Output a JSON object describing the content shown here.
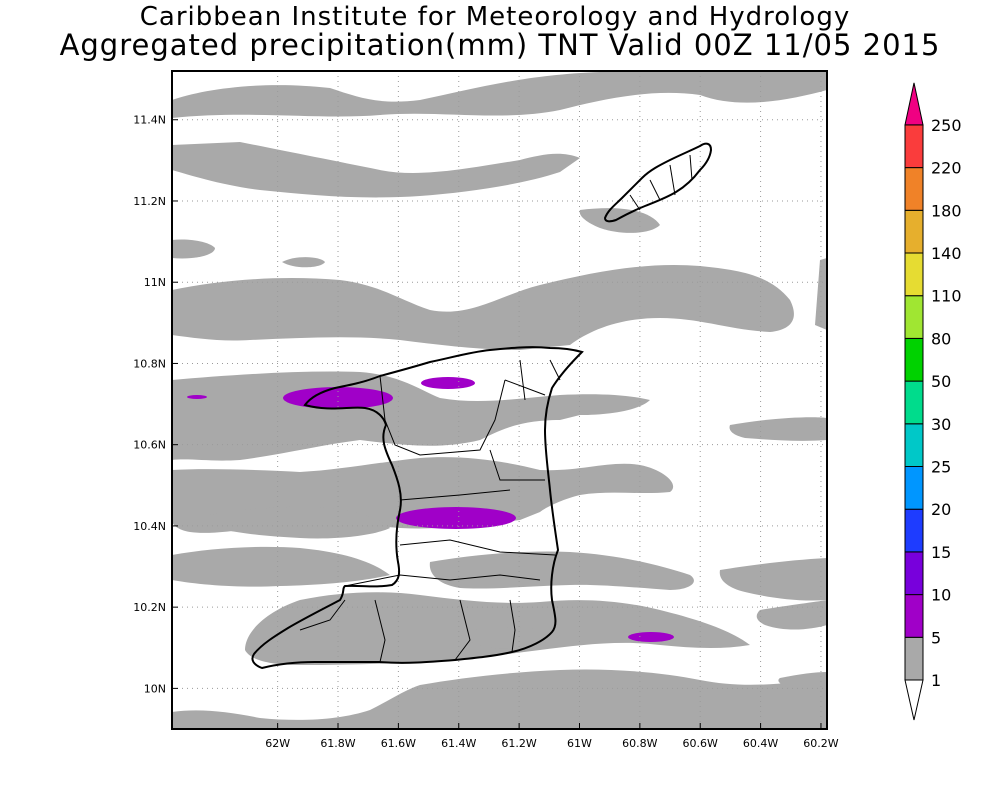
{
  "title": {
    "line1": "Caribbean Institute for Meteorology and Hydrology",
    "line2": "Aggregated precipitation(mm) TNT Valid 00Z 11/05 2015"
  },
  "map": {
    "lon_range": [
      -62.35,
      -60.18
    ],
    "lat_range": [
      9.9,
      11.52
    ],
    "lon_ticks": [
      {
        "value": -62.0,
        "label": "62W"
      },
      {
        "value": -61.8,
        "label": "61.8W"
      },
      {
        "value": -61.6,
        "label": "61.6W"
      },
      {
        "value": -61.4,
        "label": "61.4W"
      },
      {
        "value": -61.2,
        "label": "61.2W"
      },
      {
        "value": -61.0,
        "label": "61W"
      },
      {
        "value": -60.8,
        "label": "60.8W"
      },
      {
        "value": -60.6,
        "label": "60.6W"
      },
      {
        "value": -60.4,
        "label": "60.4W"
      },
      {
        "value": -60.2,
        "label": "60.2W"
      }
    ],
    "lat_ticks": [
      {
        "value": 10.0,
        "label": "10N"
      },
      {
        "value": 10.2,
        "label": "10.2N"
      },
      {
        "value": 10.4,
        "label": "10.4N"
      },
      {
        "value": 10.6,
        "label": "10.6N"
      },
      {
        "value": 10.8,
        "label": "10.8N"
      },
      {
        "value": 11.0,
        "label": "11N"
      },
      {
        "value": 11.2,
        "label": "11.2N"
      },
      {
        "value": 11.4,
        "label": "11.4N"
      }
    ],
    "grid": true
  },
  "colorbar": {
    "levels": [
      {
        "label": "1",
        "color": "#ffffff"
      },
      {
        "label": "5",
        "color": "#a9a9a9"
      },
      {
        "label": "10",
        "color": "#a000c8"
      },
      {
        "label": "15",
        "color": "#7800dc"
      },
      {
        "label": "20",
        "color": "#1e3cff"
      },
      {
        "label": "25",
        "color": "#0096ff"
      },
      {
        "label": "30",
        "color": "#00c8c8"
      },
      {
        "label": "50",
        "color": "#00dc8c"
      },
      {
        "label": "80",
        "color": "#00d200"
      },
      {
        "label": "110",
        "color": "#a0e632"
      },
      {
        "label": "140",
        "color": "#e6dc32"
      },
      {
        "label": "180",
        "color": "#e6af2d"
      },
      {
        "label": "220",
        "color": "#f08228"
      },
      {
        "label": "250",
        "color": "#fa3c3c"
      }
    ],
    "top_color": "#f00082"
  },
  "precip_colors": {
    "light": "#a9a9a9",
    "moderate": "#a000c8"
  }
}
